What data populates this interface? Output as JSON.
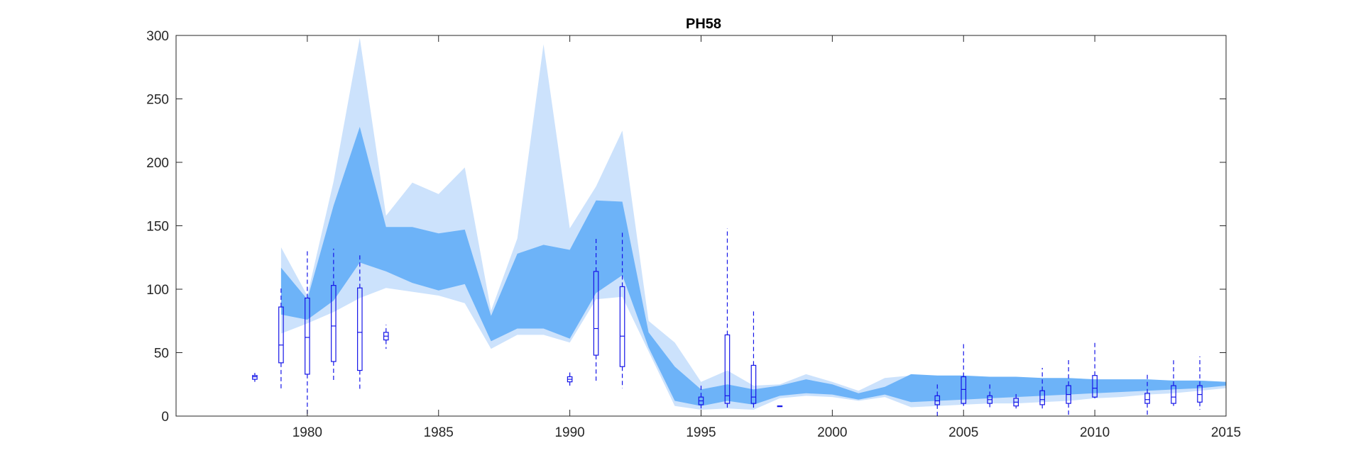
{
  "chart_data": {
    "type": "area",
    "title": "PH58",
    "xlabel": "",
    "ylabel": "",
    "xlim": [
      1975,
      2015
    ],
    "ylim": [
      0,
      300
    ],
    "xticks": [
      1980,
      1985,
      1990,
      1995,
      2000,
      2005,
      2010,
      2015
    ],
    "yticks": [
      0,
      50,
      100,
      150,
      200,
      250,
      300
    ],
    "grid": false,
    "legend": "none",
    "colors": {
      "outer_band": "#cce2fc",
      "inner_band": "#6db3f8",
      "boxplot": "#1515e8",
      "axis": "#262626"
    },
    "series": [
      {
        "role": "outer band",
        "x": [
          1979,
          1980,
          1981,
          1982,
          1983,
          1984,
          1985,
          1986,
          1987,
          1988,
          1989,
          1990,
          1991,
          1992,
          1993,
          1994,
          1995,
          1996,
          1997,
          1998,
          1999,
          2000,
          2001,
          2002,
          2003,
          2004,
          2005,
          2006,
          2007,
          2008,
          2009,
          2010,
          2011,
          2012,
          2013,
          2014,
          2015
        ],
        "upper": [
          133,
          95,
          185,
          298,
          158,
          184,
          175,
          196,
          83,
          140,
          293,
          148,
          181,
          225,
          75,
          58,
          27,
          36,
          24,
          25,
          33,
          27,
          20,
          30,
          32,
          31,
          31,
          30,
          30,
          29,
          29,
          28,
          28,
          28,
          28,
          28,
          27
        ],
        "lower": [
          65,
          73,
          82,
          93,
          101,
          98,
          95,
          89,
          53,
          64,
          64,
          58,
          92,
          94,
          51,
          8,
          5,
          6,
          5,
          14,
          16,
          15,
          12,
          15,
          7,
          8,
          9,
          10,
          10,
          11,
          12,
          14,
          15,
          17,
          18,
          20,
          22
        ]
      },
      {
        "role": "inner band",
        "x": [
          1979,
          1980,
          1981,
          1982,
          1983,
          1984,
          1985,
          1986,
          1987,
          1988,
          1989,
          1990,
          1991,
          1992,
          1993,
          1994,
          1995,
          1996,
          1997,
          1998,
          1999,
          2000,
          2001,
          2002,
          2003,
          2004,
          2005,
          2006,
          2007,
          2008,
          2009,
          2010,
          2011,
          2012,
          2013,
          2014,
          2015
        ],
        "upper": [
          117,
          92,
          166,
          228,
          149,
          149,
          144,
          147,
          79,
          128,
          135,
          131,
          170,
          169,
          66,
          39,
          21,
          25,
          21,
          24,
          29,
          25,
          18,
          23,
          33,
          32,
          32,
          31,
          31,
          30,
          30,
          29,
          29,
          29,
          28,
          28,
          27
        ],
        "lower": [
          80,
          76,
          91,
          121,
          114,
          105,
          99,
          104,
          59,
          69,
          69,
          61,
          97,
          111,
          54,
          12,
          8,
          12,
          9,
          16,
          18,
          17,
          13,
          17,
          11,
          12,
          13,
          14,
          15,
          16,
          17,
          18,
          19,
          20,
          21,
          22,
          24
        ]
      }
    ],
    "boxplots": [
      {
        "x": 1978,
        "min": 27,
        "q1": 29,
        "median": 31,
        "q3": 32,
        "max": 34
      },
      {
        "x": 1979,
        "min": 21,
        "q1": 42,
        "median": 56,
        "q3": 86,
        "max": 102
      },
      {
        "x": 1980,
        "min": 0,
        "q1": 33,
        "median": 62,
        "q3": 93,
        "max": 130
      },
      {
        "x": 1981,
        "min": 28,
        "q1": 43,
        "median": 71,
        "q3": 103,
        "max": 132
      },
      {
        "x": 1982,
        "min": 21,
        "q1": 36,
        "median": 66,
        "q3": 101,
        "max": 128
      },
      {
        "x": 1983,
        "min": 53,
        "q1": 60,
        "median": 63,
        "q3": 66,
        "max": 72
      },
      {
        "x": 1990,
        "min": 24,
        "q1": 27,
        "median": 29,
        "q3": 31,
        "max": 35
      },
      {
        "x": 1991,
        "min": 27,
        "q1": 48,
        "median": 69,
        "q3": 114,
        "max": 141
      },
      {
        "x": 1992,
        "min": 22,
        "q1": 39,
        "median": 63,
        "q3": 102,
        "max": 146
      },
      {
        "x": 1995,
        "min": 6,
        "q1": 9,
        "median": 12,
        "q3": 15,
        "max": 25
      },
      {
        "x": 1996,
        "min": 5,
        "q1": 10,
        "median": 16,
        "q3": 64,
        "max": 148
      },
      {
        "x": 1997,
        "min": 6,
        "q1": 10,
        "median": 15,
        "q3": 40,
        "max": 83
      },
      {
        "x": 1998,
        "min": 8,
        "q1": 8,
        "median": 8,
        "q3": 8,
        "max": 8
      },
      {
        "x": 2004,
        "min": 0,
        "q1": 9,
        "median": 12,
        "q3": 16,
        "max": 27
      },
      {
        "x": 2005,
        "min": 8,
        "q1": 10,
        "median": 21,
        "q3": 31,
        "max": 58
      },
      {
        "x": 2006,
        "min": 7,
        "q1": 10,
        "median": 13,
        "q3": 16,
        "max": 25
      },
      {
        "x": 2007,
        "min": 6,
        "q1": 8,
        "median": 11,
        "q3": 14,
        "max": 19
      },
      {
        "x": 2008,
        "min": 6,
        "q1": 9,
        "median": 13,
        "q3": 20,
        "max": 38
      },
      {
        "x": 2009,
        "min": 0,
        "q1": 10,
        "median": 17,
        "q3": 24,
        "max": 45
      },
      {
        "x": 2010,
        "min": 14,
        "q1": 15,
        "median": 22,
        "q3": 32,
        "max": 58
      },
      {
        "x": 2012,
        "min": 0,
        "q1": 10,
        "median": 13,
        "q3": 18,
        "max": 33
      },
      {
        "x": 2013,
        "min": 8,
        "q1": 10,
        "median": 15,
        "q3": 24,
        "max": 44
      },
      {
        "x": 2014,
        "min": 5,
        "q1": 11,
        "median": 17,
        "q3": 24,
        "max": 47
      }
    ]
  }
}
